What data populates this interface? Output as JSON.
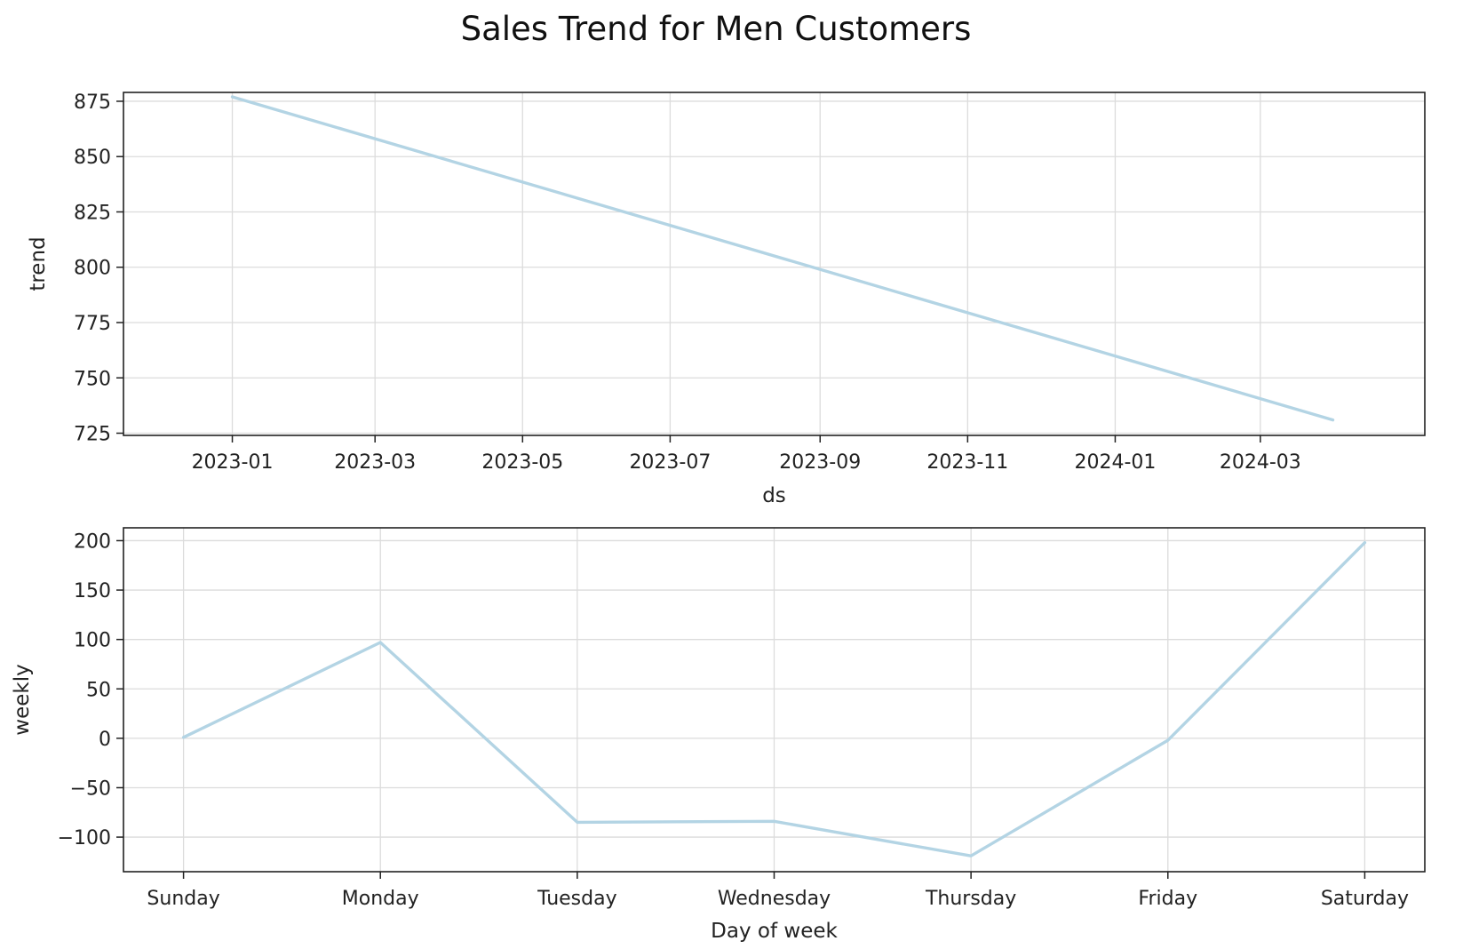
{
  "figure": {
    "title": "Sales Trend for Men Customers"
  },
  "colors": {
    "series": "#b3d4e4",
    "grid": "#dcdcdc",
    "axis": "#222222"
  },
  "chart_data": [
    {
      "type": "line",
      "title": "",
      "xlabel": "ds",
      "ylabel": "trend",
      "x_type": "date",
      "xlim": [
        "2022-11-17",
        "2024-05-08"
      ],
      "ylim": [
        724,
        879
      ],
      "grid": true,
      "x_ticks": [
        "2023-01",
        "2023-03",
        "2023-05",
        "2023-07",
        "2023-09",
        "2023-11",
        "2024-01",
        "2024-03"
      ],
      "tick_dates": [
        "2023-01-01",
        "2023-03-01",
        "2023-05-01",
        "2023-07-01",
        "2023-09-01",
        "2023-11-01",
        "2024-01-01",
        "2024-03-01"
      ],
      "y_ticks": [
        725,
        750,
        775,
        800,
        825,
        850,
        875
      ],
      "series": [
        {
          "x": [
            "2023-01-01",
            "2024-03-31"
          ],
          "y": [
            877,
            731
          ]
        }
      ]
    },
    {
      "type": "line",
      "title": "",
      "xlabel": "Day of week",
      "ylabel": "weekly",
      "ylim": [
        -135,
        213
      ],
      "grid": true,
      "categories": [
        "Sunday",
        "Monday",
        "Tuesday",
        "Wednesday",
        "Thursday",
        "Friday",
        "Saturday"
      ],
      "y_ticks": [
        -100,
        -50,
        0,
        50,
        100,
        150,
        200
      ],
      "y_tick_labels": [
        "−100",
        "−50",
        "0",
        "50",
        "100",
        "150",
        "200"
      ],
      "series": [
        {
          "values": [
            1,
            97,
            -85,
            -84,
            -119,
            -2,
            198
          ]
        }
      ]
    }
  ]
}
